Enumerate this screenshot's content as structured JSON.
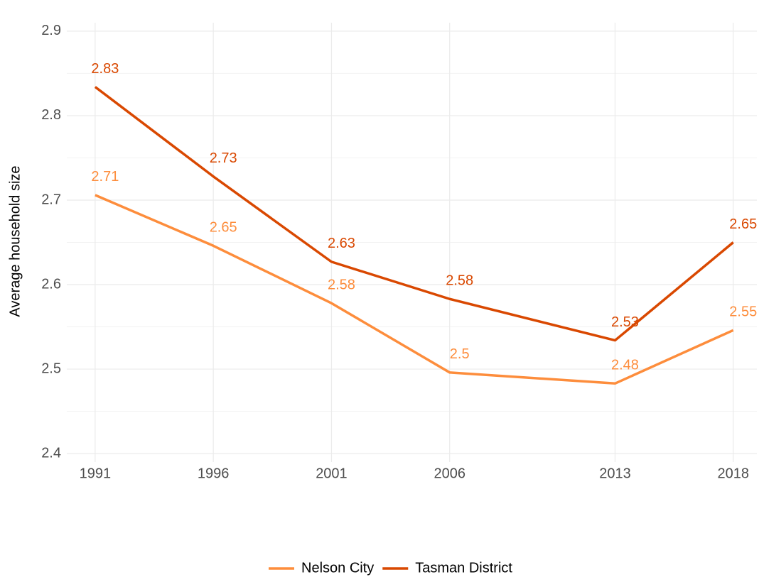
{
  "chart_data": {
    "type": "line",
    "y_label": "Average household size",
    "x": [
      1991,
      1996,
      2001,
      2006,
      2013,
      2018
    ],
    "xlim": [
      1989.8,
      2019
    ],
    "xticks": [
      1991,
      1996,
      2001,
      2006,
      2013,
      2018
    ],
    "ylim": [
      2.39,
      2.91
    ],
    "yticks": [
      2.4,
      2.5,
      2.6,
      2.7,
      2.8,
      2.9
    ],
    "grid": true,
    "legend": "bottom",
    "series": [
      {
        "name": "Nelson City",
        "color": "#fd8d3c",
        "values": [
          2.706,
          2.646,
          2.578,
          2.496,
          2.483,
          2.546
        ],
        "value_labels": [
          "2.71",
          "2.65",
          "2.58",
          "2.5",
          "2.48",
          "2.55"
        ]
      },
      {
        "name": "Tasman District",
        "color": "#d94801",
        "values": [
          2.834,
          2.728,
          2.627,
          2.583,
          2.534,
          2.65
        ],
        "value_labels": [
          "2.83",
          "2.73",
          "2.63",
          "2.58",
          "2.53",
          "2.65"
        ]
      }
    ]
  }
}
